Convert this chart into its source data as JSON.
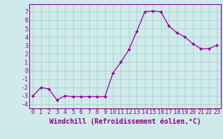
{
  "x": [
    0,
    1,
    2,
    3,
    4,
    5,
    6,
    7,
    8,
    9,
    10,
    11,
    12,
    13,
    14,
    15,
    16,
    17,
    18,
    19,
    20,
    21,
    22,
    23
  ],
  "y": [
    -3,
    -2,
    -2.2,
    -3.5,
    -3,
    -3.1,
    -3.1,
    -3.1,
    -3.1,
    -3.1,
    -0.3,
    1.0,
    2.5,
    4.7,
    7.0,
    7.1,
    7.0,
    5.3,
    4.5,
    4.0,
    3.2,
    2.6,
    2.6,
    3.0
  ],
  "line_color": "#990099",
  "marker": "D",
  "marker_size": 2.0,
  "bg_color": "#ceeaea",
  "grid_color": "#aacaca",
  "xlabel": "Windchill (Refroidissement éolien,°C)",
  "xlim": [
    -0.5,
    23.5
  ],
  "ylim": [
    -4.5,
    7.9
  ],
  "yticks": [
    -4,
    -3,
    -2,
    -1,
    0,
    1,
    2,
    3,
    4,
    5,
    6,
    7
  ],
  "xticks": [
    0,
    1,
    2,
    3,
    4,
    5,
    6,
    7,
    8,
    9,
    10,
    11,
    12,
    13,
    14,
    15,
    16,
    17,
    18,
    19,
    20,
    21,
    22,
    23
  ],
  "tick_color": "#880088",
  "label_fontsize": 6.0,
  "xlabel_fontsize": 7.0,
  "linewidth": 0.9
}
